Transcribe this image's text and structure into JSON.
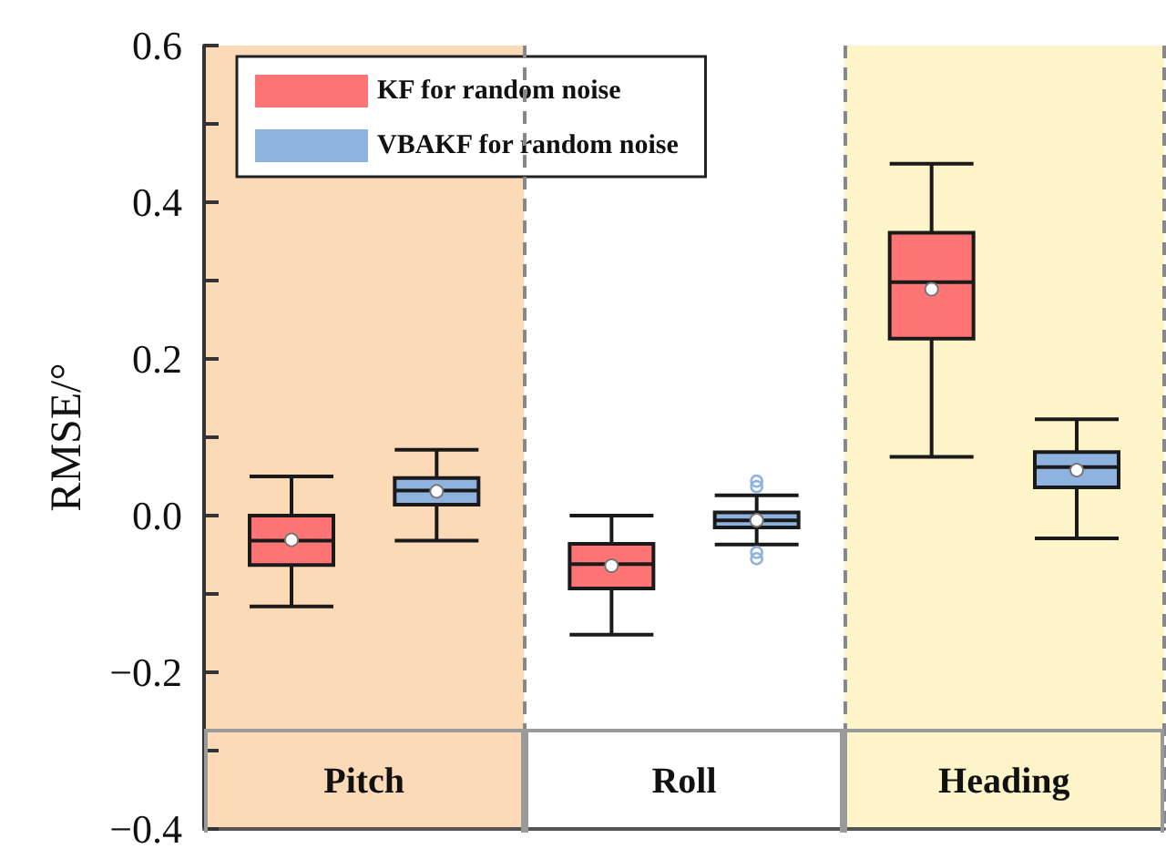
{
  "chart_data": {
    "type": "box",
    "ylabel": "RMSE/°",
    "categories": [
      "Pitch",
      "Roll",
      "Heading"
    ],
    "ylim": [
      -0.4,
      0.6
    ],
    "yticks": [
      -0.4,
      {
        "value": -0.3,
        "label": null
      },
      -0.2,
      {
        "value": -0.1,
        "label": null
      },
      {
        "value": 0,
        "label": "0.0"
      },
      {
        "value": 0.1,
        "label": null
      },
      0.2,
      {
        "value": 0.3,
        "label": null
      },
      0.4,
      {
        "value": 0.5,
        "label": null
      },
      0.6
    ],
    "grid": "x",
    "legend": "top left",
    "bands": [
      {
        "axis": "x",
        "from": "Pitch",
        "to": "Pitch",
        "label": null,
        "color": "#fcdab7"
      },
      {
        "axis": "x",
        "from": "Heading",
        "to": "Heading",
        "label": null,
        "color": "#fdf4c9"
      }
    ],
    "series": [
      {
        "name": "KF for random noise",
        "color": "#ff7474",
        "boxes": [
          {
            "low": -0.116,
            "q1": -0.063,
            "median": -0.032,
            "q3": 0.0,
            "high": 0.05,
            "mean": -0.031
          },
          {
            "low": -0.152,
            "q1": -0.093,
            "median": -0.062,
            "q3": -0.036,
            "high": 0.0,
            "mean": -0.064
          },
          {
            "low": 0.075,
            "q1": 0.226,
            "median": 0.298,
            "q3": 0.361,
            "high": 0.449,
            "mean": 0.289
          }
        ]
      },
      {
        "name": "VBAKF for random noise",
        "color": "#8fb3df",
        "boxes": [
          {
            "low": -0.032,
            "q1": 0.014,
            "median": 0.032,
            "q3": 0.048,
            "high": 0.084,
            "mean": 0.031
          },
          {
            "low": -0.037,
            "q1": -0.015,
            "median": -0.006,
            "q3": 0.004,
            "high": 0.026,
            "mean": -0.006,
            "outliers": [
              0.044,
              0.037,
              -0.047,
              -0.055
            ]
          },
          {
            "low": -0.029,
            "q1": 0.036,
            "median": 0.062,
            "q3": 0.081,
            "high": 0.123,
            "mean": 0.058
          }
        ]
      }
    ]
  }
}
